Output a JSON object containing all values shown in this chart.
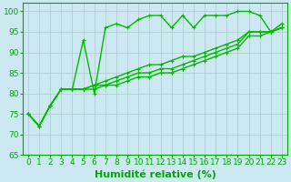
{
  "xlabel": "Humidité relative (%)",
  "xlim": [
    -0.5,
    23.5
  ],
  "ylim": [
    65,
    102
  ],
  "yticks": [
    65,
    70,
    75,
    80,
    85,
    90,
    95,
    100
  ],
  "xticks": [
    0,
    1,
    2,
    3,
    4,
    5,
    6,
    7,
    8,
    9,
    10,
    11,
    12,
    13,
    14,
    15,
    16,
    17,
    18,
    19,
    20,
    21,
    22,
    23
  ],
  "bg_color": "#cce8f0",
  "grid_color": "#b0c8d0",
  "line_color": "#00bb00",
  "line1": [
    75,
    72,
    77,
    81,
    81,
    93,
    80,
    96,
    97,
    96,
    98,
    99,
    99,
    96,
    99,
    96,
    99,
    99,
    99,
    100,
    100,
    99,
    95,
    97
  ],
  "line2": [
    75,
    72,
    77,
    81,
    81,
    81,
    82,
    83,
    84,
    85,
    86,
    87,
    87,
    88,
    89,
    89,
    90,
    91,
    92,
    93,
    95,
    95,
    95,
    96
  ],
  "line3": [
    75,
    72,
    77,
    81,
    81,
    81,
    82,
    82,
    83,
    84,
    85,
    85,
    86,
    86,
    87,
    88,
    89,
    90,
    91,
    92,
    95,
    95,
    95,
    96
  ],
  "line4": [
    75,
    72,
    77,
    81,
    81,
    81,
    81,
    82,
    82,
    83,
    84,
    84,
    85,
    85,
    86,
    87,
    88,
    89,
    90,
    91,
    94,
    94,
    95,
    96
  ],
  "marker": "+",
  "markersize": 3.5,
  "linewidth": 1.0,
  "xlabel_fontsize": 8,
  "tick_fontsize": 6.5,
  "tick_color": "#00aa00",
  "label_color": "#00aa00",
  "spine_color": "#00aa00"
}
